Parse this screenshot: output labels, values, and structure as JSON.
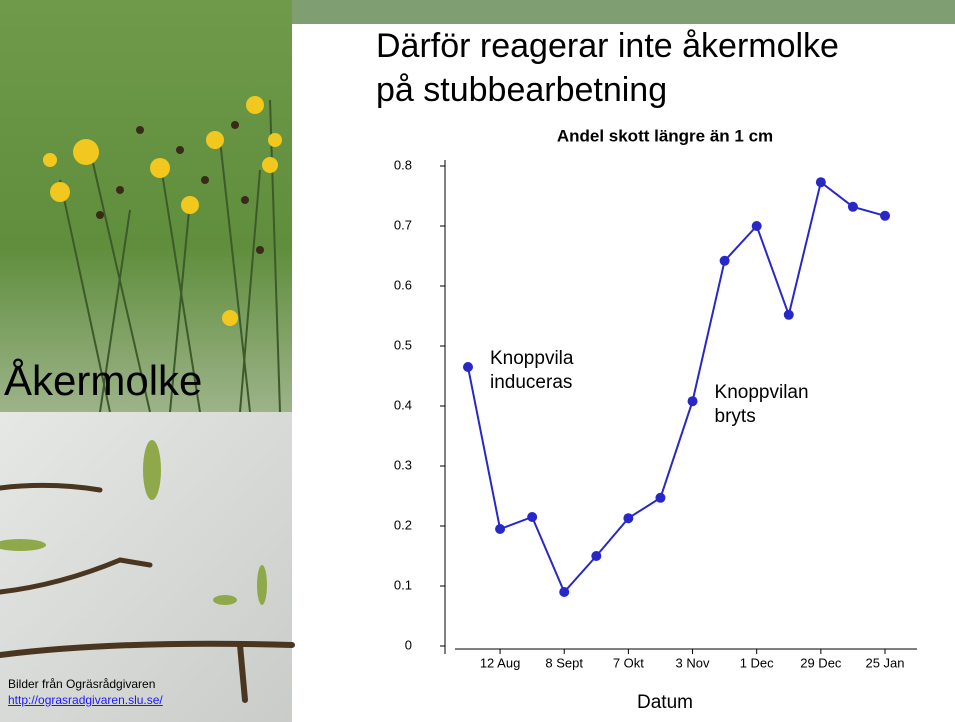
{
  "slide_title": [
    "Därför reagerar inte åkermolke",
    "på stubbearbetning"
  ],
  "side_label": "Åkermolke",
  "credit": {
    "text": "Bilder från Ogräsrådgivaren",
    "link": "http://ograsradgivaren.slu.se/"
  },
  "chart_data": {
    "type": "line",
    "title": "Andel skott längre än 1 cm",
    "x_label": "Datum",
    "categories": [
      null,
      "12 Aug",
      null,
      "8 Sept",
      null,
      "7 Okt",
      null,
      "3 Nov",
      null,
      "1 Dec",
      null,
      "29 Dec",
      null,
      "25 Jan"
    ],
    "series": [
      {
        "name": "Andel skott",
        "color": "#2828c8",
        "values": [
          0.465,
          0.195,
          0.215,
          0.09,
          0.15,
          0.213,
          0.247,
          0.408,
          0.642,
          0.7,
          0.552,
          0.773,
          0.732,
          0.717
        ]
      }
    ],
    "ylim": [
      0,
      0.8
    ],
    "yticks": [
      0,
      0.1,
      0.2,
      0.3,
      0.4,
      0.5,
      0.6,
      0.7,
      0.8
    ],
    "annotations": [
      {
        "lines": [
          "Knoppvila",
          "induceras"
        ],
        "at": 0
      },
      {
        "lines": [
          "Knoppvilan",
          "bryts"
        ],
        "at": 7
      }
    ]
  }
}
